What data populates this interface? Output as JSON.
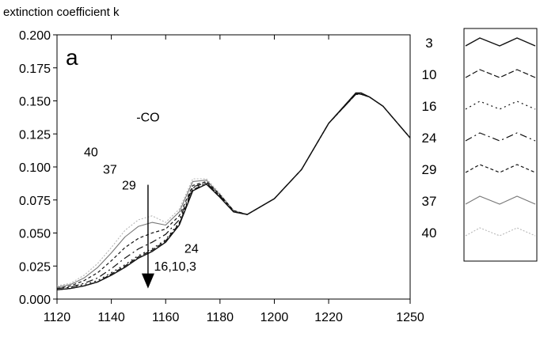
{
  "chart_data": {
    "type": "line",
    "ylabel": "extinction coefficient k",
    "xlabel": "",
    "panel_label": "a",
    "xlim": [
      1120,
      1250
    ],
    "ylim": [
      0.0,
      0.2
    ],
    "x_ticks": [
      1120,
      1140,
      1160,
      1180,
      1200,
      1220,
      1250
    ],
    "y_ticks": [
      0.0,
      0.025,
      0.05,
      0.075,
      0.1,
      0.125,
      0.15,
      0.175,
      0.2
    ],
    "y_tick_labels": [
      "0.000",
      "0.025",
      "0.050",
      "0.075",
      "0.100",
      "0.125",
      "0.150",
      "0.175",
      "0.200"
    ],
    "grid": false,
    "legend_position": "right",
    "x": [
      1120,
      1125,
      1130,
      1135,
      1140,
      1145,
      1150,
      1155,
      1160,
      1165,
      1170,
      1175,
      1180,
      1185,
      1190,
      1200,
      1210,
      1220,
      1230,
      1232,
      1235,
      1240,
      1250
    ],
    "series": [
      {
        "name": "3",
        "color": "#111111",
        "dash": "",
        "width": 1.4,
        "values": [
          0.007,
          0.008,
          0.01,
          0.013,
          0.018,
          0.024,
          0.031,
          0.036,
          0.043,
          0.056,
          0.082,
          0.087,
          0.077,
          0.066,
          0.064,
          0.076,
          0.098,
          0.133,
          0.156,
          0.156,
          0.153,
          0.146,
          0.122
        ]
      },
      {
        "name": "10",
        "color": "#111111",
        "dash": "7 3",
        "width": 1.2,
        "values": [
          0.007,
          0.008,
          0.01,
          0.013,
          0.019,
          0.025,
          0.032,
          0.037,
          0.044,
          0.057,
          0.083,
          0.087,
          0.077,
          0.066,
          0.064,
          0.076,
          0.098,
          0.133,
          0.156,
          0.155,
          0.153,
          0.146,
          0.122
        ]
      },
      {
        "name": "16",
        "color": "#111111",
        "dash": "2 4",
        "width": 1.2,
        "values": [
          0.008,
          0.009,
          0.011,
          0.014,
          0.02,
          0.026,
          0.033,
          0.038,
          0.045,
          0.058,
          0.084,
          0.088,
          0.078,
          0.066,
          0.064,
          0.076,
          0.098,
          0.133,
          0.155,
          0.155,
          0.153,
          0.146,
          0.122
        ]
      },
      {
        "name": "24",
        "color": "#111111",
        "dash": "9 4 2 4",
        "width": 1.2,
        "values": [
          0.008,
          0.009,
          0.012,
          0.016,
          0.023,
          0.031,
          0.038,
          0.043,
          0.049,
          0.06,
          0.085,
          0.088,
          0.078,
          0.066,
          0.064,
          0.076,
          0.098,
          0.133,
          0.155,
          0.155,
          0.153,
          0.146,
          0.122
        ]
      },
      {
        "name": "29",
        "color": "#111111",
        "dash": "4 3",
        "width": 1.2,
        "values": [
          0.008,
          0.01,
          0.014,
          0.02,
          0.029,
          0.039,
          0.046,
          0.05,
          0.053,
          0.063,
          0.086,
          0.089,
          0.079,
          0.067,
          0.064,
          0.076,
          0.098,
          0.133,
          0.155,
          0.155,
          0.153,
          0.146,
          0.122
        ]
      },
      {
        "name": "37",
        "color": "#777777",
        "dash": "",
        "width": 1.1,
        "values": [
          0.009,
          0.011,
          0.016,
          0.024,
          0.035,
          0.047,
          0.055,
          0.058,
          0.056,
          0.066,
          0.089,
          0.09,
          0.079,
          0.067,
          0.064,
          0.076,
          0.098,
          0.133,
          0.155,
          0.155,
          0.153,
          0.146,
          0.122
        ]
      },
      {
        "name": "40",
        "color": "#b8b8b8",
        "dash": "2 2",
        "width": 1.1,
        "values": [
          0.01,
          0.012,
          0.018,
          0.027,
          0.039,
          0.052,
          0.06,
          0.063,
          0.058,
          0.068,
          0.091,
          0.091,
          0.08,
          0.067,
          0.064,
          0.076,
          0.098,
          0.133,
          0.155,
          0.155,
          0.153,
          0.146,
          0.122
        ]
      }
    ],
    "annotations": [
      {
        "id": "co",
        "text": "-CO",
        "x": 1153.5,
        "y": 0.1345
      },
      {
        "id": "lbl-40",
        "text": "40",
        "x": 1132.5,
        "y": 0.108
      },
      {
        "id": "lbl-37",
        "text": "37",
        "x": 1139.5,
        "y": 0.095
      },
      {
        "id": "lbl-29",
        "text": "29",
        "x": 1146.5,
        "y": 0.083
      },
      {
        "id": "lbl-24",
        "text": "24",
        "x": 1169.5,
        "y": 0.035
      },
      {
        "id": "lbl-16",
        "text": "16,10,3",
        "x": 1163.5,
        "y": 0.0215
      }
    ],
    "arrow": {
      "x": 1153.5,
      "y_start": 0.0865,
      "y_end": 0.008,
      "direction": "down"
    }
  }
}
